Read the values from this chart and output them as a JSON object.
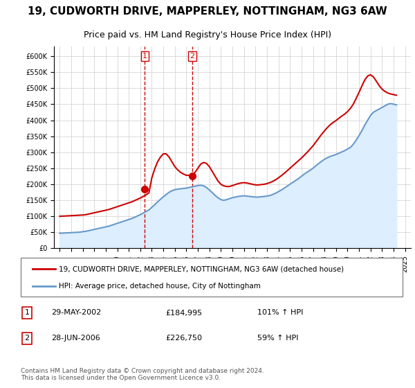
{
  "title": "19, CUDWORTH DRIVE, MAPPERLEY, NOTTINGHAM, NG3 6AW",
  "subtitle": "Price paid vs. HM Land Registry's House Price Index (HPI)",
  "legend_line1": "19, CUDWORTH DRIVE, MAPPERLEY, NOTTINGHAM, NG3 6AW (detached house)",
  "legend_line2": "HPI: Average price, detached house, City of Nottingham",
  "footnote": "Contains HM Land Registry data © Crown copyright and database right 2024.\nThis data is licensed under the Open Government Licence v3.0.",
  "sale1_label": "1",
  "sale1_date": "29-MAY-2002",
  "sale1_price": "£184,995",
  "sale1_hpi": "101% ↑ HPI",
  "sale2_label": "2",
  "sale2_date": "28-JUN-2006",
  "sale2_price": "£226,750",
  "sale2_hpi": "59% ↑ HPI",
  "sale1_x": 2002.4,
  "sale1_y": 184995,
  "sale2_x": 2006.5,
  "sale2_y": 226750,
  "vline1_x": 2002.4,
  "vline2_x": 2006.5,
  "ylim": [
    0,
    630000
  ],
  "xlim": [
    1994.5,
    2025.5
  ],
  "red_color": "#cc0000",
  "blue_color": "#6699cc",
  "hpi_fill_color": "#ddeeff",
  "grid_color": "#cccccc",
  "bg_color": "#ffffff",
  "vline_color": "#cc0000",
  "sale_dot_color": "#cc0000",
  "hpi_data_x": [
    1995,
    1995.25,
    1995.5,
    1995.75,
    1996,
    1996.25,
    1996.5,
    1996.75,
    1997,
    1997.25,
    1997.5,
    1997.75,
    1998,
    1998.25,
    1998.5,
    1998.75,
    1999,
    1999.25,
    1999.5,
    1999.75,
    2000,
    2000.25,
    2000.5,
    2000.75,
    2001,
    2001.25,
    2001.5,
    2001.75,
    2002,
    2002.25,
    2002.5,
    2002.75,
    2003,
    2003.25,
    2003.5,
    2003.75,
    2004,
    2004.25,
    2004.5,
    2004.75,
    2005,
    2005.25,
    2005.5,
    2005.75,
    2006,
    2006.25,
    2006.5,
    2006.75,
    2007,
    2007.25,
    2007.5,
    2007.75,
    2008,
    2008.25,
    2008.5,
    2008.75,
    2009,
    2009.25,
    2009.5,
    2009.75,
    2010,
    2010.25,
    2010.5,
    2010.75,
    2011,
    2011.25,
    2011.5,
    2011.75,
    2012,
    2012.25,
    2012.5,
    2012.75,
    2013,
    2013.25,
    2013.5,
    2013.75,
    2014,
    2014.25,
    2014.5,
    2014.75,
    2015,
    2015.25,
    2015.5,
    2015.75,
    2016,
    2016.25,
    2016.5,
    2016.75,
    2017,
    2017.25,
    2017.5,
    2017.75,
    2018,
    2018.25,
    2018.5,
    2018.75,
    2019,
    2019.25,
    2019.5,
    2019.75,
    2020,
    2020.25,
    2020.5,
    2020.75,
    2021,
    2021.25,
    2021.5,
    2021.75,
    2022,
    2022.25,
    2022.5,
    2022.75,
    2023,
    2023.25,
    2023.5,
    2023.75,
    2024,
    2024.25
  ],
  "hpi_data_y": [
    47000,
    47500,
    48000,
    48500,
    49000,
    49500,
    50000,
    50500,
    52000,
    53000,
    55000,
    57000,
    59000,
    61000,
    63000,
    65000,
    67000,
    69000,
    72000,
    75000,
    78000,
    81000,
    84000,
    87000,
    90000,
    93000,
    97000,
    101000,
    105000,
    110000,
    115000,
    120000,
    128000,
    136000,
    145000,
    153000,
    161000,
    168000,
    175000,
    180000,
    183000,
    185000,
    186000,
    187000,
    188000,
    190000,
    192000,
    194000,
    196000,
    197000,
    195000,
    190000,
    182000,
    174000,
    165000,
    158000,
    152000,
    150000,
    152000,
    155000,
    158000,
    160000,
    162000,
    163000,
    164000,
    163000,
    162000,
    161000,
    160000,
    160000,
    161000,
    162000,
    163000,
    165000,
    168000,
    172000,
    177000,
    182000,
    188000,
    194000,
    200000,
    206000,
    212000,
    218000,
    225000,
    232000,
    238000,
    244000,
    250000,
    258000,
    265000,
    272000,
    278000,
    283000,
    287000,
    290000,
    293000,
    297000,
    301000,
    305000,
    310000,
    315000,
    325000,
    338000,
    352000,
    368000,
    385000,
    400000,
    415000,
    425000,
    430000,
    435000,
    440000,
    445000,
    450000,
    452000,
    450000,
    448000
  ],
  "price_data_x": [
    1995,
    1995.25,
    1995.5,
    1995.75,
    1996,
    1996.25,
    1996.5,
    1996.75,
    1997,
    1997.25,
    1997.5,
    1997.75,
    1998,
    1998.25,
    1998.5,
    1998.75,
    1999,
    1999.25,
    1999.5,
    1999.75,
    2000,
    2000.25,
    2000.5,
    2000.75,
    2001,
    2001.25,
    2001.5,
    2001.75,
    2002,
    2002.25,
    2002.5,
    2002.75,
    2003,
    2003.25,
    2003.5,
    2003.75,
    2004,
    2004.25,
    2004.5,
    2004.75,
    2005,
    2005.25,
    2005.5,
    2005.75,
    2006,
    2006.25,
    2006.5,
    2006.75,
    2007,
    2007.25,
    2007.5,
    2007.75,
    2008,
    2008.25,
    2008.5,
    2008.75,
    2009,
    2009.25,
    2009.5,
    2009.75,
    2010,
    2010.25,
    2010.5,
    2010.75,
    2011,
    2011.25,
    2011.5,
    2011.75,
    2012,
    2012.25,
    2012.5,
    2012.75,
    2013,
    2013.25,
    2013.5,
    2013.75,
    2014,
    2014.25,
    2014.5,
    2014.75,
    2015,
    2015.25,
    2015.5,
    2015.75,
    2016,
    2016.25,
    2016.5,
    2016.75,
    2017,
    2017.25,
    2017.5,
    2017.75,
    2018,
    2018.25,
    2018.5,
    2018.75,
    2019,
    2019.25,
    2019.5,
    2019.75,
    2020,
    2020.25,
    2020.5,
    2020.75,
    2021,
    2021.25,
    2021.5,
    2021.75,
    2022,
    2022.25,
    2022.5,
    2022.75,
    2023,
    2023.25,
    2023.5,
    2023.75,
    2024,
    2024.25
  ],
  "price_data_y": [
    100000,
    100500,
    101000,
    101500,
    102000,
    102500,
    103000,
    103500,
    104000,
    105000,
    107000,
    109000,
    111000,
    113000,
    115000,
    117000,
    119000,
    121000,
    124000,
    127000,
    130000,
    133000,
    136000,
    139000,
    142000,
    145000,
    149000,
    153000,
    157000,
    162000,
    167000,
    173000,
    220000,
    248000,
    270000,
    285000,
    295000,
    295000,
    285000,
    270000,
    255000,
    245000,
    237000,
    232000,
    228000,
    228000,
    230000,
    237000,
    250000,
    263000,
    268000,
    265000,
    255000,
    240000,
    225000,
    210000,
    200000,
    195000,
    193000,
    193000,
    196000,
    199000,
    202000,
    204000,
    205000,
    204000,
    202000,
    200000,
    198000,
    198000,
    199000,
    200000,
    202000,
    205000,
    209000,
    214000,
    220000,
    227000,
    234000,
    242000,
    250000,
    258000,
    266000,
    274000,
    282000,
    291000,
    300000,
    310000,
    320000,
    332000,
    344000,
    356000,
    367000,
    377000,
    386000,
    393000,
    399000,
    406000,
    413000,
    419000,
    427000,
    437000,
    450000,
    468000,
    487000,
    507000,
    526000,
    538000,
    542000,
    535000,
    522000,
    508000,
    497000,
    490000,
    485000,
    482000,
    480000,
    478000
  ]
}
